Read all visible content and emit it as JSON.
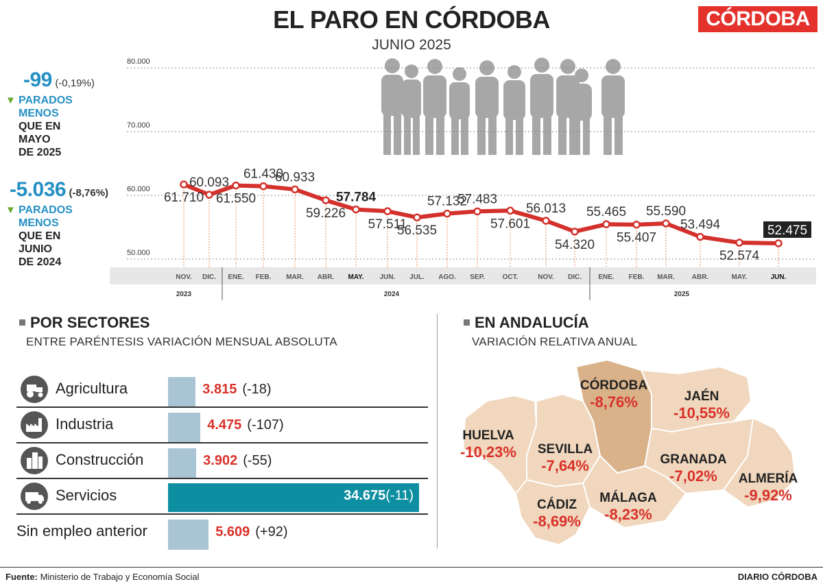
{
  "header": {
    "title": "EL PARO EN CÓRDOBA",
    "subtitle": "JUNIO 2025",
    "logo": "CÓRDOBA"
  },
  "kpi_month": {
    "value": "-99",
    "pct": "(-0,19%)",
    "l1": "PARADOS",
    "l2": "MENOS",
    "l3": "QUE EN",
    "l4": "MAYO",
    "l5": "DE 2025"
  },
  "kpi_year": {
    "value": "-5.036",
    "pct": "(-8,76%)",
    "l1": "PARADOS",
    "l2": "MENOS",
    "l3": "QUE EN",
    "l4": "JUNIO",
    "l5": "DE 2024"
  },
  "chart_data": {
    "type": "line",
    "title": "EL PARO EN CÓRDOBA",
    "ylim": [
      50000,
      80000
    ],
    "y_ticks": [
      "80.000",
      "70.000",
      "60.000",
      "50.000"
    ],
    "categories": [
      "NOV.",
      "DIC.",
      "ENE.",
      "FEB.",
      "MAR.",
      "ABR.",
      "MAY.",
      "JUN.",
      "JUL.",
      "AGO.",
      "SEP.",
      "OCT.",
      "NOV.",
      "DIC.",
      "ENE.",
      "FEB.",
      "MAR.",
      "ABR.",
      "MAY.",
      "JUN."
    ],
    "values": [
      61710,
      60093,
      61550,
      61430,
      60933,
      59226,
      57784,
      57511,
      56535,
      57132,
      57483,
      57601,
      56013,
      54320,
      55465,
      55407,
      55590,
      53494,
      52574,
      52475
    ],
    "value_labels": [
      "61.710",
      "60.093",
      "61.550",
      "61.430",
      "60.933",
      "59.226",
      "57.784",
      "57.511",
      "56.535",
      "57.132",
      "57.483",
      "57.601",
      "56.013",
      "54.320",
      "55.465",
      "55.407",
      "55.590",
      "53.494",
      "52.574",
      "52.475"
    ],
    "years": [
      "2023",
      "2024",
      "2025"
    ],
    "color": "#d4312c"
  },
  "sectors": {
    "title": "POR SECTORES",
    "subtitle": "ENTRE PARÉNTESIS VARIACIÓN MENSUAL ABSOLUTA",
    "max": 34675,
    "items": [
      {
        "name": "Agricultura",
        "value": 3815,
        "value_label": "3.815",
        "change": "(-18)",
        "icon": "tractor-icon"
      },
      {
        "name": "Industria",
        "value": 4475,
        "value_label": "4.475",
        "change": "(-107)",
        "icon": "factory-icon"
      },
      {
        "name": "Construcción",
        "value": 3902,
        "value_label": "3.902",
        "change": "(-55)",
        "icon": "buildings-icon"
      },
      {
        "name": "Servicios",
        "value": 34675,
        "value_label": "34.675",
        "change": "(-11)",
        "icon": "van-icon"
      },
      {
        "name": "Sin empleo anterior",
        "value": 5609,
        "value_label": "5.609",
        "change": "(+92)",
        "icon": ""
      }
    ]
  },
  "andalucia": {
    "title": "EN ANDALUCÍA",
    "subtitle": "VARIACIÓN RELATIVA ANUAL",
    "provinces": [
      {
        "name": "CÓRDOBA",
        "value": "-8,76%"
      },
      {
        "name": "JAÉN",
        "value": "-10,55%"
      },
      {
        "name": "HUELVA",
        "value": "-10,23%"
      },
      {
        "name": "SEVILLA",
        "value": "-7,64%"
      },
      {
        "name": "GRANADA",
        "value": "-7,02%"
      },
      {
        "name": "ALMERÍA",
        "value": "-9,92%"
      },
      {
        "name": "CÁDIZ",
        "value": "-8,69%"
      },
      {
        "name": "MÁLAGA",
        "value": "-8,23%"
      }
    ]
  },
  "footer": {
    "source_label": "Fuente:",
    "source": "Ministerio de Trabajo y Economía Social",
    "credit": "DIARIO CÓRDOBA"
  }
}
